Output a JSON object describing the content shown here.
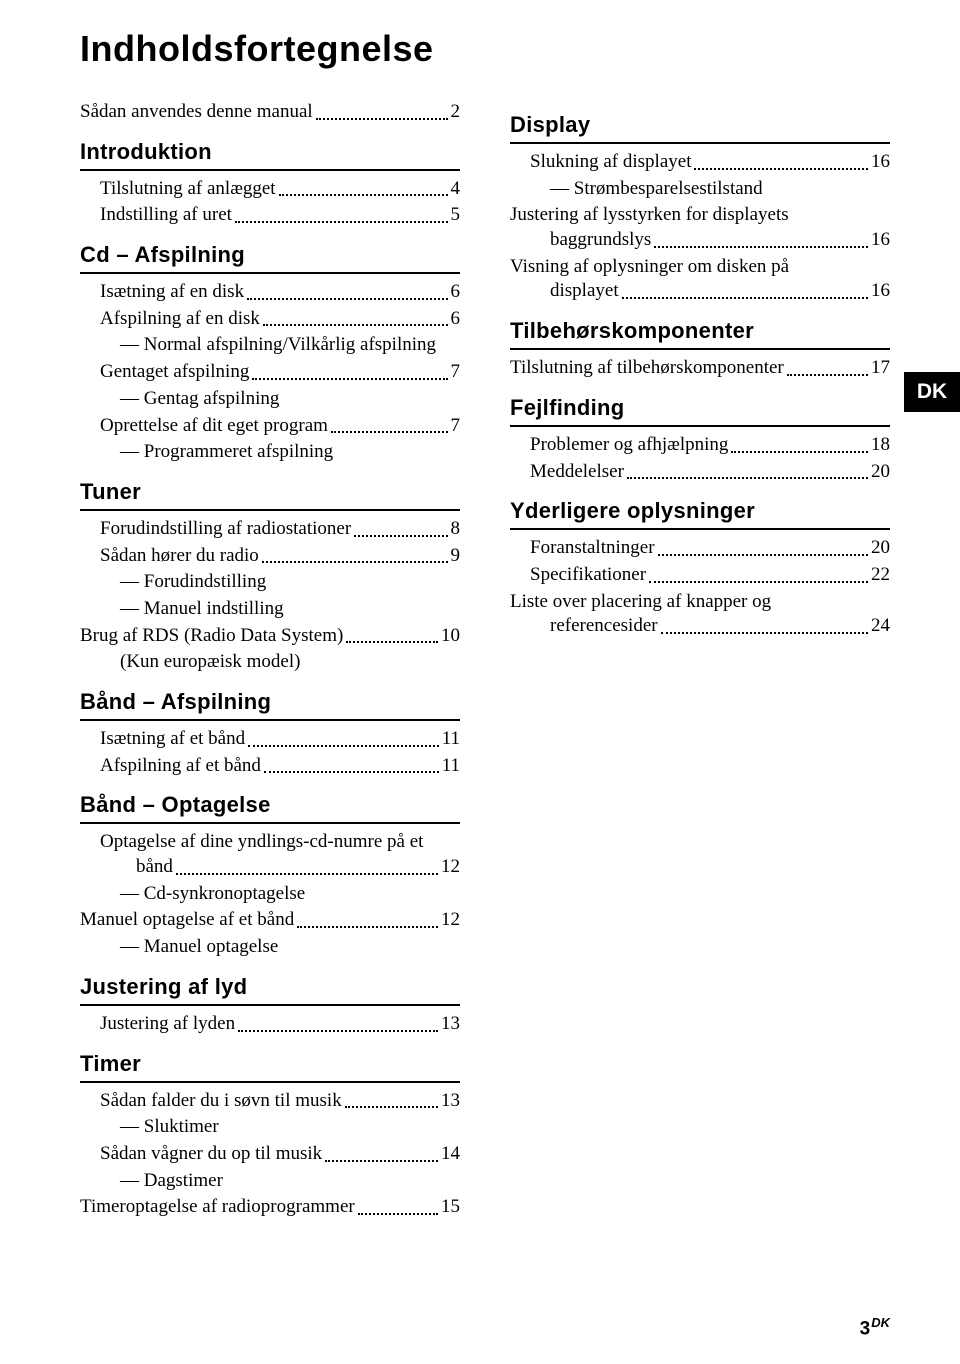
{
  "title": "Indholdsfortegnelse",
  "side_tab": "DK",
  "footer_page": "3",
  "footer_suffix": "DK",
  "left": {
    "intro_line": {
      "label": "Sådan anvendes denne manual",
      "page": "2"
    },
    "sections": [
      {
        "title": "Introduktion",
        "items": [
          {
            "type": "entry",
            "label": "Tilslutning af anlægget",
            "page": "4"
          },
          {
            "type": "entry",
            "label": "Indstilling af uret",
            "page": "5"
          }
        ]
      },
      {
        "title": "Cd – Afspilning",
        "items": [
          {
            "type": "entry",
            "label": "Isætning af en disk",
            "page": "6"
          },
          {
            "type": "entry",
            "label": "Afspilning af en disk",
            "page": "6"
          },
          {
            "type": "sub",
            "text": "— Normal afspilning/Vilkårlig afspilning"
          },
          {
            "type": "entry",
            "label": "Gentaget afspilning",
            "page": "7"
          },
          {
            "type": "sub",
            "text": "— Gentag afspilning"
          },
          {
            "type": "entry",
            "label": "Oprettelse af dit eget program",
            "page": "7"
          },
          {
            "type": "sub",
            "text": "— Programmeret afspilning"
          }
        ]
      },
      {
        "title": "Tuner",
        "items": [
          {
            "type": "entry",
            "label": "Forudindstilling af radiostationer",
            "page": "8"
          },
          {
            "type": "entry",
            "label": "Sådan hører du radio",
            "page": "9"
          },
          {
            "type": "sub",
            "text": "— Forudindstilling"
          },
          {
            "type": "sub",
            "text": "— Manuel indstilling"
          },
          {
            "type": "entry",
            "label": "Brug af RDS (Radio Data System)",
            "page": "10",
            "noindent": true
          },
          {
            "type": "sub",
            "text": "(Kun europæisk model)"
          }
        ]
      },
      {
        "title": "Bånd – Afspilning",
        "items": [
          {
            "type": "entry",
            "label": "Isætning af et bånd",
            "page": "11"
          },
          {
            "type": "entry",
            "label": "Afspilning af et bånd",
            "page": "11"
          }
        ]
      },
      {
        "title": "Bånd – Optagelse",
        "items": [
          {
            "type": "wrap",
            "line1": "Optagelse af dine yndlings-cd-numre på et",
            "cont_label": "bånd",
            "page": "12"
          },
          {
            "type": "sub",
            "text": "— Cd-synkronoptagelse"
          },
          {
            "type": "entry",
            "label": "Manuel optagelse af et bånd",
            "page": "12",
            "noindent": true
          },
          {
            "type": "sub",
            "text": "— Manuel optagelse"
          }
        ]
      },
      {
        "title": "Justering af lyd",
        "items": [
          {
            "type": "entry",
            "label": "Justering af lyden",
            "page": "13"
          }
        ]
      },
      {
        "title": "Timer",
        "items": [
          {
            "type": "entry",
            "label": "Sådan falder du i søvn til musik",
            "page": "13"
          },
          {
            "type": "sub",
            "text": "— Sluktimer"
          },
          {
            "type": "entry",
            "label": "Sådan vågner du op til musik",
            "page": "14"
          },
          {
            "type": "sub",
            "text": "— Dagstimer"
          },
          {
            "type": "entry",
            "label": "Timeroptagelse af radioprogrammer",
            "page": "15",
            "noindent": true
          }
        ]
      }
    ]
  },
  "right": {
    "sections": [
      {
        "title": "Display",
        "items": [
          {
            "type": "entry",
            "label": "Slukning af displayet",
            "page": "16"
          },
          {
            "type": "sub",
            "text": "— Strømbesparelsestilstand"
          },
          {
            "type": "wrap0",
            "line1": "Justering af lysstyrken for displayets",
            "cont_label": "baggrundslys",
            "page": "16"
          },
          {
            "type": "wrap0",
            "line1": "Visning af oplysninger om disken på",
            "cont_label": "displayet",
            "page": "16"
          }
        ]
      },
      {
        "title": "Tilbehørskomponenter",
        "items": [
          {
            "type": "entry",
            "label": "Tilslutning af tilbehørskomponenter",
            "page": "17",
            "noindent": true
          }
        ]
      },
      {
        "title": "Fejlfinding",
        "items": [
          {
            "type": "entry",
            "label": "Problemer og afhjælpning",
            "page": "18"
          },
          {
            "type": "entry",
            "label": "Meddelelser",
            "page": "20"
          }
        ]
      },
      {
        "title": "Yderligere oplysninger",
        "items": [
          {
            "type": "entry",
            "label": "Foranstaltninger",
            "page": "20"
          },
          {
            "type": "entry",
            "label": "Specifikationer",
            "page": "22"
          },
          {
            "type": "wrap0",
            "line1": "Liste over placering af knapper og",
            "cont_label": "referencesider",
            "page": "24"
          }
        ]
      }
    ]
  }
}
